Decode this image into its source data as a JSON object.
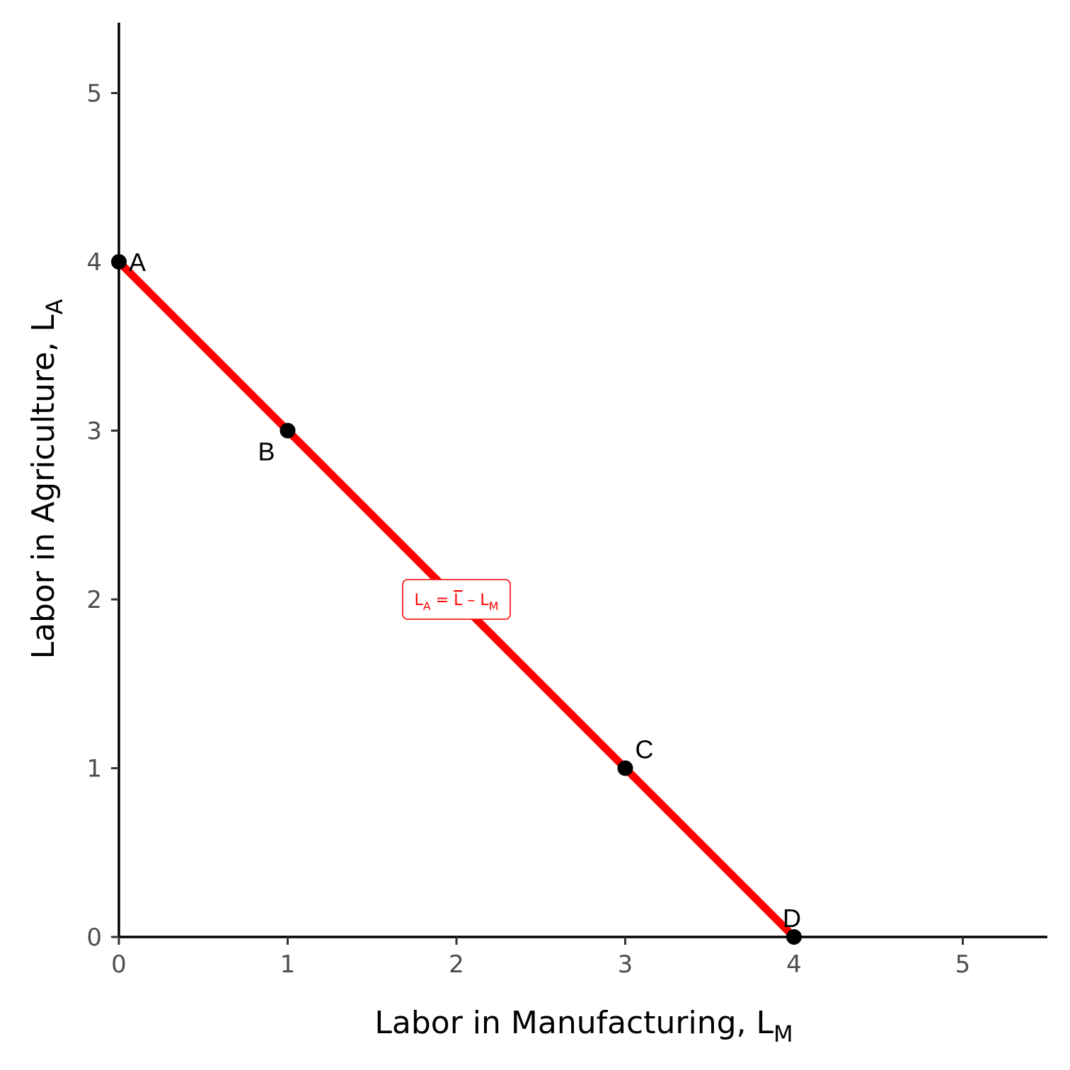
{
  "chart_data": {
    "type": "line",
    "title": "",
    "xlabel": "Labor in Manufacturing, L",
    "xlabel_subscript": "M",
    "ylabel": "Labor in Agriculture, L",
    "ylabel_subscript": "A",
    "xlim": [
      0,
      5.5
    ],
    "ylim": [
      0,
      5.5
    ],
    "x_ticks": [
      0,
      1,
      2,
      3,
      4,
      5
    ],
    "y_ticks": [
      0,
      1,
      2,
      3,
      4,
      5
    ],
    "grid": false,
    "series": [
      {
        "x": [
          0,
          4
        ],
        "y": [
          4,
          0
        ],
        "color": "#ff0000"
      }
    ],
    "points": [
      {
        "label": "A",
        "x": 0,
        "y": 4
      },
      {
        "label": "B",
        "x": 1,
        "y": 3
      },
      {
        "label": "C",
        "x": 3,
        "y": 1
      },
      {
        "label": "D",
        "x": 4,
        "y": 0
      }
    ],
    "annotation": {
      "x": 2,
      "y": 2,
      "color": "#ff0000",
      "parts": [
        "L",
        "A",
        " = ",
        "L",
        " – ",
        "L",
        "M"
      ]
    }
  }
}
